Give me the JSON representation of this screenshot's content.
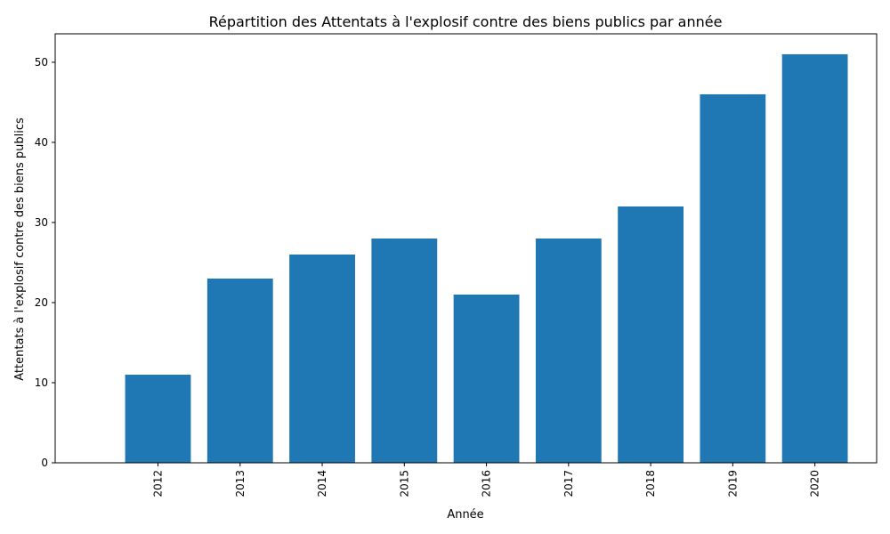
{
  "chart_data": {
    "type": "bar",
    "title": "Répartition des Attentats à l'explosif contre des biens publics par année",
    "xlabel": "Année",
    "ylabel": "Attentats à l'explosif contre des biens publics",
    "categories": [
      "2012",
      "2013",
      "2014",
      "2015",
      "2016",
      "2017",
      "2018",
      "2019",
      "2020"
    ],
    "values": [
      11,
      23,
      26,
      28,
      21,
      28,
      32,
      46,
      51
    ],
    "ylim": [
      0,
      53.55
    ],
    "yticks": [
      0,
      10,
      20,
      30,
      40,
      50
    ],
    "ytick_labels": [
      "0",
      "10",
      "20",
      "30",
      "40",
      "50"
    ],
    "bar_color": "#1f77b4",
    "grid": false,
    "legend": "none"
  }
}
